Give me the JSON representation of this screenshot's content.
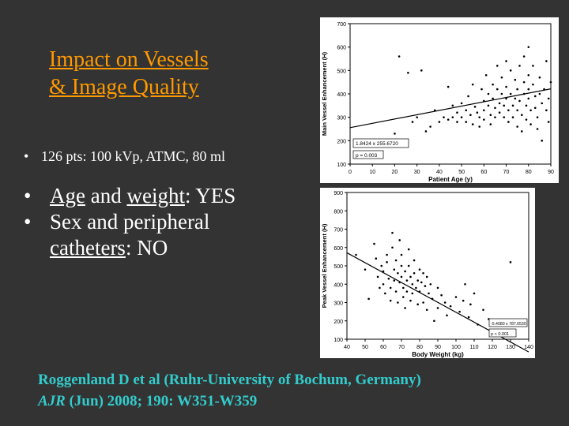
{
  "slide": {
    "title_line1": "Impact on Vessels",
    "title_line2": "& Image Quality",
    "bullet_small": "126 pts: 100 kVp, ATMC, 80 ml",
    "bullet_glyph": "•",
    "bullet2": {
      "word1": "Age",
      "mid": " and ",
      "word2": "weight",
      "tail": ": YES"
    },
    "bullet3": {
      "line1": "Sex and peripheral",
      "word": "catheters",
      "tail": ": NO"
    },
    "citation_line1": "Roggenland D et al (Ruhr-University of Bochum, Germany)",
    "citation_journal": "AJR",
    "citation_rest": " (Jun) 2008; 190: W351-W359"
  },
  "colors": {
    "background": "#333333",
    "title": "#ff9900",
    "bullet_text": "#ffffff",
    "citation": "#33cccc"
  },
  "chart_data": [
    {
      "type": "scatter",
      "xlabel": "Patient Age (y)",
      "ylabel": "Main Vessel Enhancement (H)",
      "xlim": [
        0,
        90
      ],
      "ylim": [
        100,
        700
      ],
      "xticks": [
        0,
        10,
        20,
        30,
        40,
        50,
        60,
        70,
        80,
        90
      ],
      "yticks": [
        100,
        200,
        300,
        400,
        500,
        600,
        700
      ],
      "regression_label": "1.8424 x 255.6720",
      "p_label": "p = 0.003",
      "regression_line": [
        [
          0,
          255.67
        ],
        [
          90,
          421.5
        ]
      ],
      "points": [
        [
          20,
          230
        ],
        [
          22,
          560
        ],
        [
          26,
          490
        ],
        [
          28,
          280
        ],
        [
          30,
          300
        ],
        [
          32,
          500
        ],
        [
          34,
          240
        ],
        [
          36,
          260
        ],
        [
          38,
          330
        ],
        [
          40,
          280
        ],
        [
          42,
          300
        ],
        [
          44,
          430
        ],
        [
          44,
          290
        ],
        [
          46,
          350
        ],
        [
          46,
          300
        ],
        [
          48,
          320
        ],
        [
          48,
          280
        ],
        [
          50,
          360
        ],
        [
          50,
          300
        ],
        [
          52,
          330
        ],
        [
          52,
          280
        ],
        [
          53,
          390
        ],
        [
          54,
          310
        ],
        [
          55,
          440
        ],
        [
          55,
          270
        ],
        [
          56,
          345
        ],
        [
          57,
          320
        ],
        [
          58,
          300
        ],
        [
          58,
          260
        ],
        [
          59,
          420
        ],
        [
          60,
          370
        ],
        [
          60,
          330
        ],
        [
          60,
          290
        ],
        [
          61,
          480
        ],
        [
          62,
          400
        ],
        [
          62,
          350
        ],
        [
          63,
          310
        ],
        [
          63,
          270
        ],
        [
          64,
          440
        ],
        [
          64,
          380
        ],
        [
          65,
          340
        ],
        [
          65,
          300
        ],
        [
          66,
          520
        ],
        [
          66,
          420
        ],
        [
          67,
          360
        ],
        [
          67,
          320
        ],
        [
          68,
          470
        ],
        [
          68,
          400
        ],
        [
          69,
          350
        ],
        [
          69,
          300
        ],
        [
          70,
          540
        ],
        [
          70,
          430
        ],
        [
          70,
          380
        ],
        [
          71,
          330
        ],
        [
          71,
          280
        ],
        [
          72,
          500
        ],
        [
          72,
          400
        ],
        [
          73,
          350
        ],
        [
          73,
          300
        ],
        [
          74,
          460
        ],
        [
          74,
          380
        ],
        [
          75,
          420
        ],
        [
          75,
          330
        ],
        [
          75,
          260
        ],
        [
          76,
          520
        ],
        [
          76,
          370
        ],
        [
          77,
          310
        ],
        [
          77,
          240
        ],
        [
          78,
          560
        ],
        [
          78,
          450
        ],
        [
          78,
          400
        ],
        [
          79,
          350
        ],
        [
          79,
          290
        ],
        [
          80,
          600
        ],
        [
          80,
          480
        ],
        [
          80,
          420
        ],
        [
          80,
          380
        ],
        [
          81,
          330
        ],
        [
          81,
          270
        ],
        [
          82,
          520
        ],
        [
          82,
          440
        ],
        [
          83,
          390
        ],
        [
          83,
          340
        ],
        [
          84,
          300
        ],
        [
          84,
          250
        ],
        [
          85,
          470
        ],
        [
          85,
          400
        ],
        [
          86,
          360
        ],
        [
          86,
          200
        ],
        [
          87,
          420
        ],
        [
          88,
          330
        ],
        [
          88,
          540
        ],
        [
          89,
          380
        ],
        [
          89,
          280
        ],
        [
          90,
          450
        ]
      ]
    },
    {
      "type": "scatter",
      "xlabel": "Body Weight (kg)",
      "ylabel": "Peak Vessel Enhancement (H)",
      "xlim": [
        40,
        140
      ],
      "ylim": [
        100,
        900
      ],
      "xticks": [
        40,
        50,
        60,
        70,
        80,
        90,
        100,
        110,
        120,
        130,
        140
      ],
      "yticks": [
        100,
        200,
        300,
        400,
        500,
        600,
        700,
        800,
        900
      ],
      "regression_label": "-5.4080 x 787.6530",
      "p_label": "p < 0.001",
      "regression_line": [
        [
          40,
          571.3
        ],
        [
          140,
          30.5
        ]
      ],
      "points": [
        [
          45,
          560
        ],
        [
          50,
          480
        ],
        [
          52,
          320
        ],
        [
          55,
          620
        ],
        [
          56,
          540
        ],
        [
          57,
          440
        ],
        [
          58,
          380
        ],
        [
          59,
          500
        ],
        [
          60,
          470
        ],
        [
          60,
          400
        ],
        [
          61,
          350
        ],
        [
          62,
          560
        ],
        [
          62,
          520
        ],
        [
          63,
          430
        ],
        [
          64,
          380
        ],
        [
          64,
          310
        ],
        [
          65,
          680
        ],
        [
          65,
          600
        ],
        [
          66,
          480
        ],
        [
          66,
          420
        ],
        [
          67,
          530
        ],
        [
          67,
          360
        ],
        [
          68,
          460
        ],
        [
          68,
          300
        ],
        [
          69,
          640
        ],
        [
          69,
          410
        ],
        [
          70,
          560
        ],
        [
          70,
          500
        ],
        [
          70,
          440
        ],
        [
          71,
          380
        ],
        [
          71,
          330
        ],
        [
          72,
          470
        ],
        [
          72,
          270
        ],
        [
          73,
          420
        ],
        [
          73,
          360
        ],
        [
          74,
          590
        ],
        [
          74,
          500
        ],
        [
          75,
          440
        ],
        [
          75,
          310
        ],
        [
          76,
          400
        ],
        [
          76,
          350
        ],
        [
          77,
          530
        ],
        [
          77,
          460
        ],
        [
          78,
          380
        ],
        [
          79,
          420
        ],
        [
          79,
          290
        ],
        [
          80,
          480
        ],
        [
          80,
          360
        ],
        [
          81,
          410
        ],
        [
          82,
          300
        ],
        [
          82,
          460
        ],
        [
          83,
          390
        ],
        [
          84,
          440
        ],
        [
          84,
          260
        ],
        [
          85,
          350
        ],
        [
          86,
          400
        ],
        [
          87,
          320
        ],
        [
          88,
          200
        ],
        [
          90,
          380
        ],
        [
          90,
          270
        ],
        [
          92,
          340
        ],
        [
          94,
          300
        ],
        [
          95,
          230
        ],
        [
          97,
          280
        ],
        [
          100,
          330
        ],
        [
          102,
          250
        ],
        [
          104,
          310
        ],
        [
          105,
          400
        ],
        [
          107,
          220
        ],
        [
          108,
          290
        ],
        [
          110,
          350
        ],
        [
          112,
          180
        ],
        [
          115,
          260
        ],
        [
          118,
          210
        ],
        [
          120,
          150
        ],
        [
          130,
          520
        ]
      ]
    }
  ]
}
